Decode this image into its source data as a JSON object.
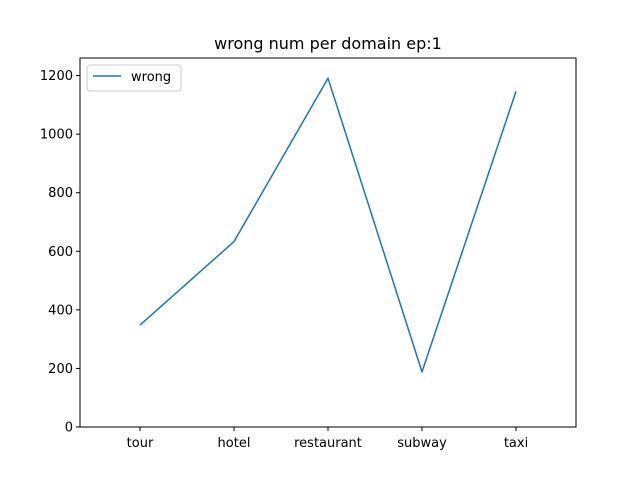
{
  "chart_data": {
    "type": "line",
    "title": "wrong num per domain ep:1",
    "xlabel": "",
    "ylabel": "",
    "categories": [
      "tour",
      "hotel",
      "restaurant",
      "subway",
      "taxi"
    ],
    "series": [
      {
        "name": "wrong",
        "values": [
          348,
          633,
          1191,
          188,
          1146
        ],
        "color": "#1f77b4"
      }
    ],
    "ylim": [
      0,
      1260
    ],
    "yticks": [
      0,
      200,
      400,
      600,
      800,
      1000,
      1200
    ],
    "grid": false,
    "legend_position": "top-left"
  }
}
